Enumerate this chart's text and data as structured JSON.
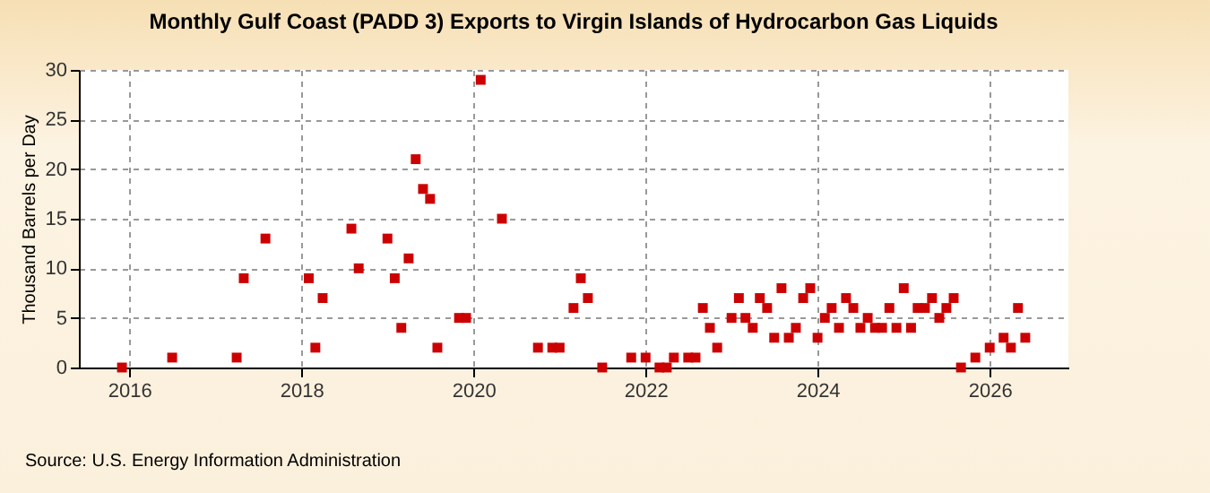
{
  "chart_data": {
    "type": "scatter",
    "title": "Monthly Gulf Coast (PADD 3) Exports to Virgin Islands of Hydrocarbon Gas Liquids",
    "ylabel": "Thousand Barrels per Day",
    "annotations": [
      "Source: U.S. Energy Information Administration"
    ],
    "x": [
      "2015-12",
      "2016-07",
      "2017-04",
      "2017-05",
      "2017-08",
      "2018-02",
      "2018-03",
      "2018-04",
      "2018-08",
      "2018-09",
      "2019-01",
      "2019-02",
      "2019-03",
      "2019-04",
      "2019-05",
      "2019-06",
      "2019-07",
      "2019-08",
      "2019-11",
      "2019-12",
      "2020-02",
      "2020-05",
      "2020-10",
      "2020-12",
      "2021-01",
      "2021-03",
      "2021-04",
      "2021-05",
      "2021-07",
      "2021-11",
      "2022-01",
      "2022-03",
      "2022-04",
      "2022-05",
      "2022-07",
      "2022-08",
      "2022-09",
      "2022-10",
      "2022-11",
      "2023-01",
      "2023-02",
      "2023-03",
      "2023-04",
      "2023-05",
      "2023-06",
      "2023-07",
      "2023-08",
      "2023-09",
      "2023-10",
      "2023-11",
      "2023-12",
      "2024-01",
      "2024-02",
      "2024-03",
      "2024-04",
      "2024-05",
      "2024-06",
      "2024-07",
      "2024-08",
      "2024-09",
      "2024-10",
      "2024-11",
      "2024-12",
      "2025-01",
      "2025-02",
      "2025-03",
      "2025-04",
      "2025-05",
      "2025-06",
      "2025-07",
      "2025-08",
      "2025-09",
      "2025-11",
      "2026-01",
      "2026-03",
      "2026-04",
      "2026-05",
      "2026-06"
    ],
    "series": [
      {
        "color": "#cc0000",
        "values": [
          0,
          1,
          1,
          9,
          13,
          9,
          2,
          7,
          14,
          10,
          13,
          9,
          4,
          11,
          21,
          18,
          17,
          2,
          5,
          5,
          29,
          15,
          2,
          2,
          2,
          6,
          9,
          7,
          0,
          1,
          1,
          0,
          0,
          1,
          1,
          1,
          6,
          4,
          2,
          5,
          7,
          5,
          4,
          7,
          6,
          3,
          8,
          3,
          4,
          7,
          8,
          3,
          5,
          6,
          4,
          7,
          6,
          4,
          5,
          4,
          4,
          6,
          4,
          8,
          4,
          6,
          6,
          7,
          5,
          6,
          7,
          0,
          1,
          2,
          3,
          2,
          6,
          3
        ]
      }
    ],
    "xlim": [
      "2015-06",
      "2026-12"
    ],
    "xticks": [
      "2016",
      "2018",
      "2020",
      "2022",
      "2024",
      "2026"
    ],
    "ylim": [
      0,
      30
    ],
    "yticks": [
      0,
      5,
      10,
      15,
      20,
      25,
      30
    ],
    "grid": true,
    "marker": "square"
  }
}
